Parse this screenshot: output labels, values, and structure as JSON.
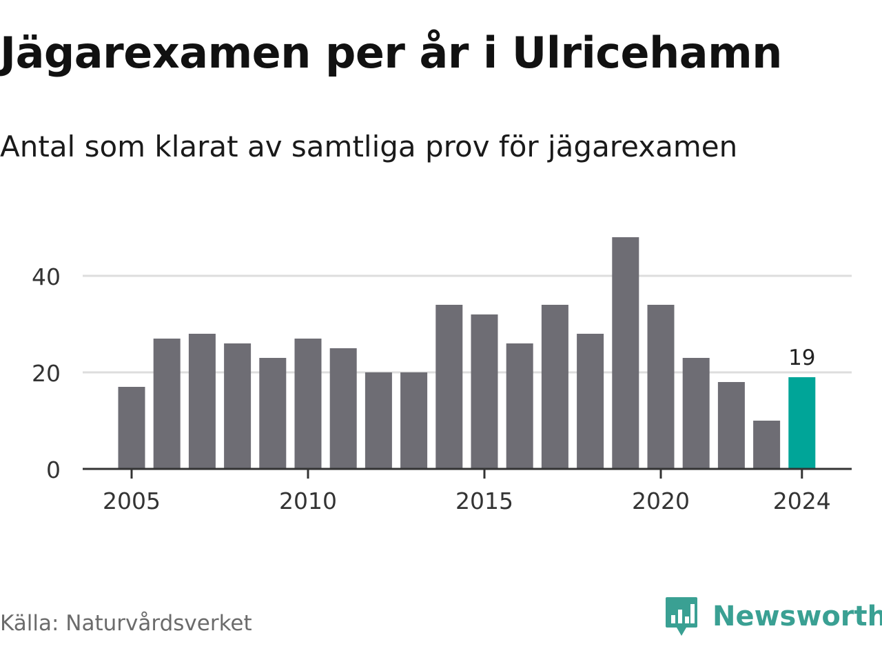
{
  "title": "Jägarexamen per år i Ulricehamn",
  "subtitle": "Antal som klarat av samtliga prov för jägarexamen",
  "source": "Källa: Naturvårdsverket",
  "brand": {
    "name": "Newsworthy",
    "icon": "bar-chart-speech-bubble-icon",
    "color": "#3aa093"
  },
  "colors": {
    "bar": "#6e6d74",
    "highlight": "#00a598",
    "grid": "#dddddd",
    "axis": "#333333"
  },
  "chart_data": {
    "type": "bar",
    "title": "Jägarexamen per år i Ulricehamn",
    "subtitle": "Antal som klarat av samtliga prov för jägarexamen",
    "categories": [
      2005,
      2006,
      2007,
      2008,
      2009,
      2010,
      2011,
      2012,
      2013,
      2014,
      2015,
      2016,
      2017,
      2018,
      2019,
      2020,
      2021,
      2022,
      2023,
      2024
    ],
    "values": [
      17,
      27,
      28,
      26,
      23,
      27,
      25,
      20,
      20,
      34,
      32,
      26,
      34,
      28,
      48,
      34,
      23,
      18,
      10,
      19
    ],
    "x_ticks": [
      "2005",
      "2010",
      "2015",
      "2020",
      "2024"
    ],
    "y_ticks": [
      "0",
      "20",
      "40"
    ],
    "ylim": [
      0,
      49
    ],
    "grid": true,
    "highlight": {
      "category": 2024,
      "label": "19"
    }
  }
}
